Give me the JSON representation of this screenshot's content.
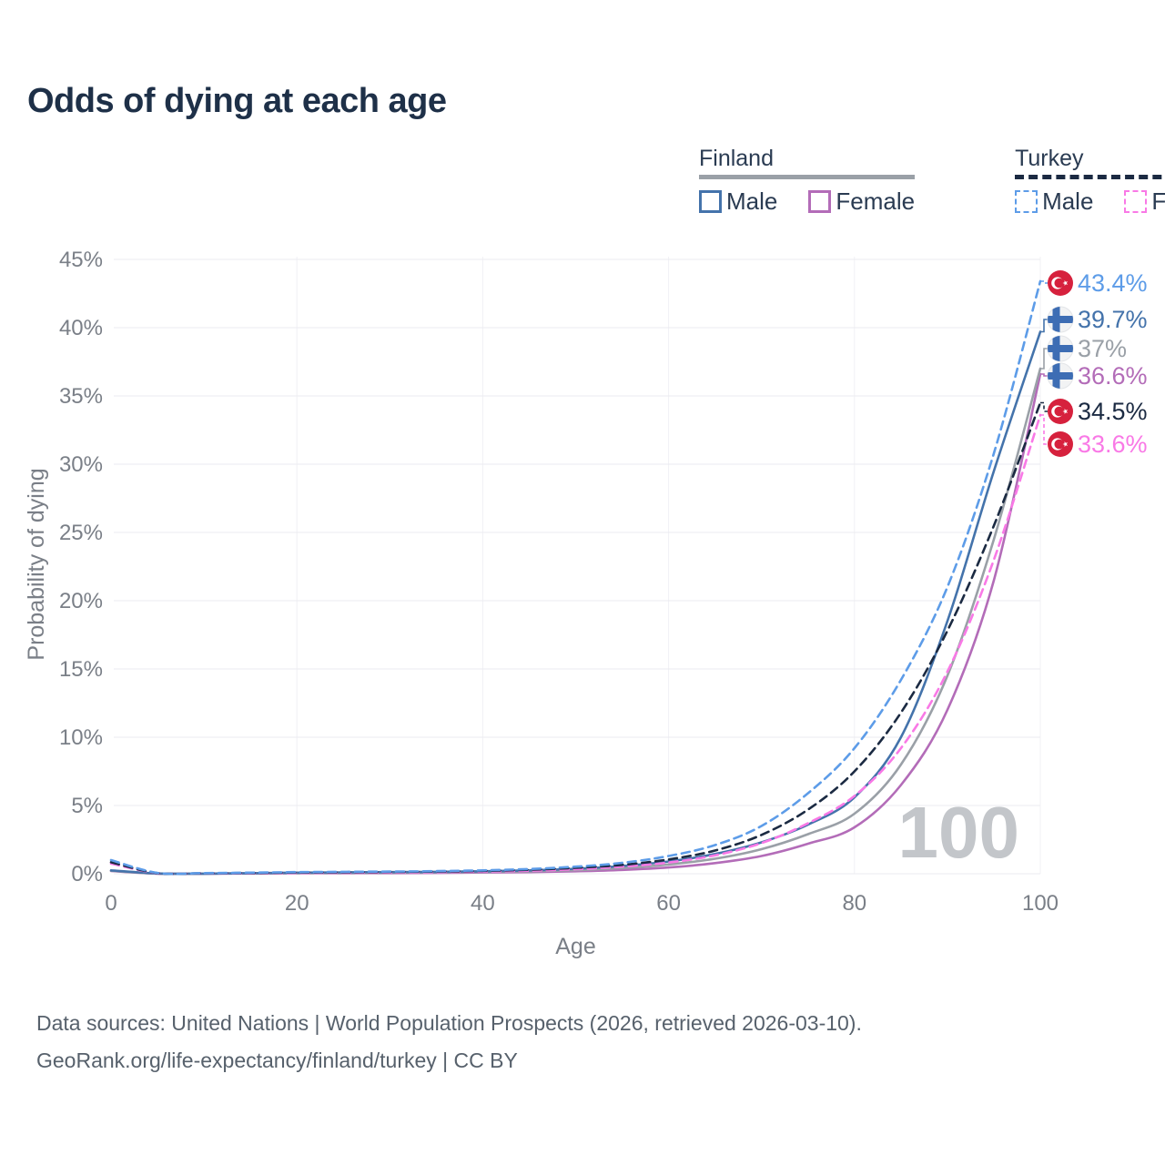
{
  "page": {
    "title": "Odds of dying at each age"
  },
  "legend": {
    "groups": [
      {
        "country": "Finland",
        "items": [
          {
            "label": "Male"
          },
          {
            "label": "Female"
          }
        ]
      },
      {
        "country": "Turkey",
        "items": [
          {
            "label": "Male"
          },
          {
            "label": "Female"
          }
        ]
      }
    ]
  },
  "colors": {
    "finland_male": "#4473ab",
    "finland_female": "#b36cb8",
    "finland_total": "#9aa0a7",
    "turkey_male": "#5d9ce8",
    "turkey_female": "#f979e6",
    "turkey_total": "#1b2a42",
    "grid": "#ebebf0",
    "grid_vertical": "#f1f1f5",
    "axis_text": "#7a7f87",
    "watermark": "#c3c6ca",
    "turkey_flag_red": "#d6213d",
    "finland_flag_blue": "#3d6db4",
    "finland_flag_bg": "#f2f3f4"
  },
  "watermark": "100",
  "footer": {
    "line1": "Data sources: United Nations | World Population Prospects (2026, retrieved 2026-03-10).",
    "line2": "GeoRank.org/life-expectancy/finland/turkey | CC BY"
  },
  "chart_data": {
    "type": "line",
    "title": "Odds of dying at each age",
    "xlabel": "Age",
    "ylabel": "Probability of dying",
    "x_ticks": [
      0,
      20,
      40,
      60,
      80,
      100
    ],
    "y_ticks_pct": [
      0,
      5,
      10,
      15,
      20,
      25,
      30,
      35,
      40,
      45
    ],
    "xlim": [
      0,
      100
    ],
    "ylim_pct": [
      0,
      45
    ],
    "grid": true,
    "legend_position": "top-right",
    "ages": [
      0,
      5,
      10,
      15,
      20,
      25,
      30,
      35,
      40,
      45,
      50,
      55,
      60,
      65,
      70,
      75,
      80,
      85,
      90,
      95,
      100
    ],
    "series": [
      {
        "name": "Finland Female",
        "country": "Finland",
        "sex": "Female",
        "style": "solid",
        "dashed": false,
        "color": "#b36cb8",
        "flag": "finland",
        "label_slot": 3,
        "end_label": "36.6%",
        "values_pct": [
          0.2,
          0.01,
          0.008,
          0.02,
          0.03,
          0.04,
          0.05,
          0.06,
          0.09,
          0.12,
          0.18,
          0.28,
          0.46,
          0.78,
          1.3,
          2.2,
          3.4,
          6.5,
          12.0,
          21.5,
          36.6
        ]
      },
      {
        "name": "Finland Total",
        "country": "Finland",
        "sex": "Both",
        "style": "solid",
        "dashed": false,
        "color": "#9aa0a7",
        "flag": "finland",
        "label_slot": 2,
        "end_label": "37%",
        "values_pct": [
          0.22,
          0.015,
          0.01,
          0.03,
          0.05,
          0.06,
          0.08,
          0.1,
          0.13,
          0.18,
          0.27,
          0.42,
          0.68,
          1.1,
          1.8,
          2.9,
          4.4,
          8.0,
          14.5,
          24.5,
          37.0
        ]
      },
      {
        "name": "Finland Male",
        "country": "Finland",
        "sex": "Male",
        "style": "solid",
        "dashed": false,
        "color": "#4473ab",
        "flag": "finland",
        "label_slot": 1,
        "end_label": "39.7%",
        "values_pct": [
          0.25,
          0.02,
          0.01,
          0.04,
          0.08,
          0.1,
          0.12,
          0.14,
          0.18,
          0.25,
          0.37,
          0.57,
          0.9,
          1.45,
          2.3,
          3.6,
          5.6,
          10.0,
          18.5,
          29.5,
          39.7
        ]
      },
      {
        "name": "Turkey Female",
        "country": "Turkey",
        "sex": "Female",
        "style": "dashed",
        "dashed": true,
        "color": "#f979e6",
        "flag": "turkey",
        "label_slot": 5,
        "end_label": "33.6%",
        "values_pct": [
          0.75,
          0.04,
          0.03,
          0.04,
          0.06,
          0.07,
          0.09,
          0.12,
          0.16,
          0.22,
          0.33,
          0.52,
          0.82,
          1.35,
          2.25,
          3.7,
          5.7,
          9.2,
          14.8,
          23.0,
          33.6
        ]
      },
      {
        "name": "Turkey Total",
        "country": "Turkey",
        "sex": "Both",
        "style": "dashed",
        "dashed": true,
        "color": "#1b2a42",
        "flag": "turkey",
        "label_slot": 4,
        "end_label": "34.5%",
        "values_pct": [
          0.85,
          0.05,
          0.04,
          0.06,
          0.09,
          0.11,
          0.13,
          0.16,
          0.21,
          0.29,
          0.43,
          0.65,
          1.05,
          1.7,
          2.85,
          4.7,
          7.5,
          11.8,
          17.8,
          25.5,
          34.5
        ]
      },
      {
        "name": "Turkey Male",
        "country": "Turkey",
        "sex": "Male",
        "style": "dashed",
        "dashed": true,
        "color": "#5d9ce8",
        "flag": "turkey",
        "label_slot": 0,
        "end_label": "43.4%",
        "values_pct": [
          1.0,
          0.06,
          0.05,
          0.08,
          0.12,
          0.14,
          0.16,
          0.19,
          0.25,
          0.35,
          0.52,
          0.8,
          1.3,
          2.1,
          3.5,
          5.9,
          9.2,
          14.2,
          21.0,
          30.8,
          43.4
        ]
      }
    ]
  }
}
